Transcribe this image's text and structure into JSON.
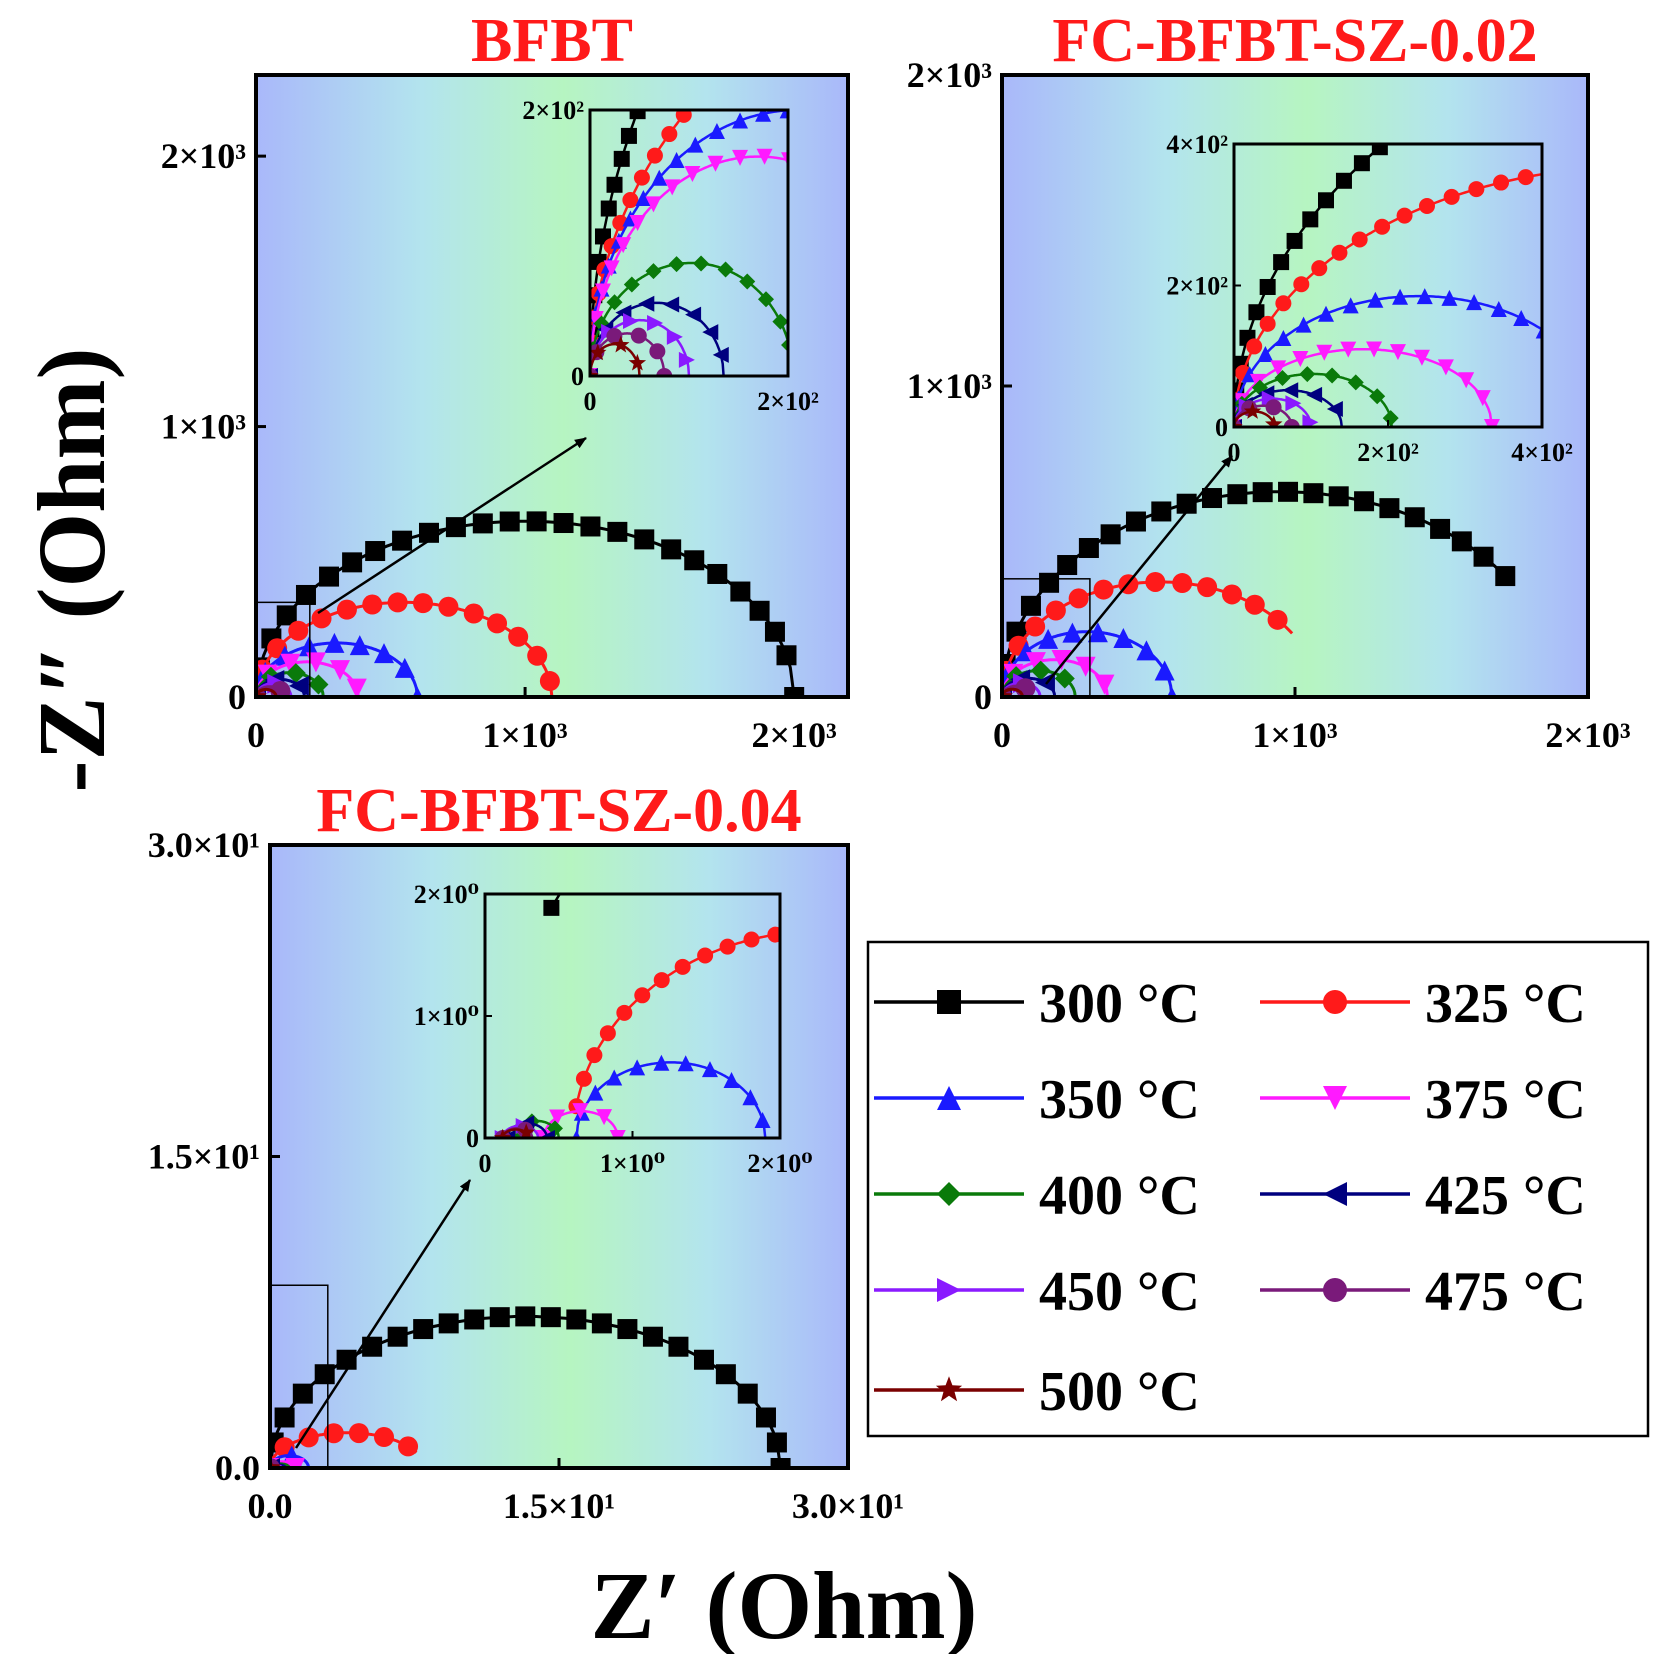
{
  "figure": {
    "x_axis_label": "Z′ (Ohm)",
    "y_axis_label": "-Z″ (Ohm)"
  },
  "legend": {
    "entries": [
      {
        "label": "300 °C",
        "color": "#000000",
        "marker": "square"
      },
      {
        "label": "325 °C",
        "color": "#ff1a1a",
        "marker": "circle"
      },
      {
        "label": "350 °C",
        "color": "#1a1aff",
        "marker": "triangle-up"
      },
      {
        "label": "375 °C",
        "color": "#ff1aff",
        "marker": "triangle-down"
      },
      {
        "label": "400 °C",
        "color": "#0a7a0a",
        "marker": "diamond"
      },
      {
        "label": "425 °C",
        "color": "#00007f",
        "marker": "triangle-left"
      },
      {
        "label": "450 °C",
        "color": "#8a1aff",
        "marker": "triangle-right"
      },
      {
        "label": "475 °C",
        "color": "#7a1a7a",
        "marker": "circle"
      },
      {
        "label": "500 °C",
        "color": "#7a0000",
        "marker": "star"
      }
    ]
  },
  "chart_data": [
    {
      "type": "scatter",
      "title": "BFBT",
      "xlim": [
        0,
        2200
      ],
      "ylim": [
        0,
        2300
      ],
      "x_ticks": [
        {
          "v": 0,
          "label": "0"
        },
        {
          "v": 1000,
          "label": "1×10³"
        },
        {
          "v": 2000,
          "label": "2×10³"
        }
      ],
      "y_ticks": [
        {
          "v": 0,
          "label": "0"
        },
        {
          "v": 1000,
          "label": "1×10³"
        },
        {
          "v": 2000,
          "label": "2×10³"
        }
      ],
      "arcs": [
        {
          "series": "300 °C",
          "x_start": 0,
          "x_end": 2000,
          "peak": 650
        },
        {
          "series": "325 °C",
          "x_start": 0,
          "x_end": 1100,
          "peak": 350
        },
        {
          "series": "350 °C",
          "x_start": 0,
          "x_end": 600,
          "peak": 200
        },
        {
          "series": "375 °C",
          "x_start": 0,
          "x_end": 380,
          "peak": 130
        },
        {
          "series": "400 °C",
          "x_start": 0,
          "x_end": 250,
          "peak": 90
        },
        {
          "series": "425 °C",
          "x_start": 0,
          "x_end": 180,
          "peak": 65
        },
        {
          "series": "450 °C",
          "x_start": 0,
          "x_end": 130,
          "peak": 50
        },
        {
          "series": "475 °C",
          "x_start": 0,
          "x_end": 100,
          "peak": 38
        },
        {
          "series": "500 °C",
          "x_start": 0,
          "x_end": 75,
          "peak": 28
        }
      ],
      "zoom_box": {
        "xlim": [
          0,
          200
        ],
        "ylim": [
          0,
          350
        ]
      },
      "inset": {
        "xlim": [
          0,
          200
        ],
        "ylim": [
          0,
          200
        ],
        "x_ticks": [
          {
            "v": 0,
            "label": "0"
          },
          {
            "v": 200,
            "label": "2×10²"
          }
        ],
        "y_ticks": [
          {
            "v": 0,
            "label": "0"
          },
          {
            "v": 200,
            "label": "2×10²"
          }
        ],
        "arcs": [
          {
            "series": "300 °C",
            "x_start": 0,
            "x_end": 2000,
            "peak": 650
          },
          {
            "series": "325 °C",
            "x_start": 0,
            "x_end": 1100,
            "peak": 350
          },
          {
            "series": "350 °C",
            "x_start": 0,
            "x_end": 420,
            "peak": 200
          },
          {
            "series": "375 °C",
            "x_start": 0,
            "x_end": 340,
            "peak": 165
          },
          {
            "series": "400 °C",
            "x_start": 0,
            "x_end": 205,
            "peak": 85
          },
          {
            "series": "425 °C",
            "x_start": 0,
            "x_end": 135,
            "peak": 55
          },
          {
            "series": "450 °C",
            "x_start": 0,
            "x_end": 100,
            "peak": 42
          },
          {
            "series": "475 °C",
            "x_start": 0,
            "x_end": 75,
            "peak": 32
          },
          {
            "series": "500 °C",
            "x_start": 0,
            "x_end": 50,
            "peak": 24
          }
        ]
      }
    },
    {
      "type": "scatter",
      "title": "FC-BFBT-SZ-0.02",
      "xlim": [
        0,
        2000
      ],
      "ylim": [
        0,
        2000
      ],
      "x_ticks": [
        {
          "v": 0,
          "label": "0"
        },
        {
          "v": 1000,
          "label": "1×10³"
        },
        {
          "v": 2000,
          "label": "2×10³"
        }
      ],
      "y_ticks": [
        {
          "v": 0,
          "label": "0"
        },
        {
          "v": 1000,
          "label": "1×10³"
        },
        {
          "v": 2000,
          "label": "2×10³"
        }
      ],
      "arcs": [
        {
          "series": "300 °C",
          "x_start": 0,
          "x_end": 1900,
          "peak": 660,
          "x_stop": 1730
        },
        {
          "series": "325 °C",
          "x_start": 0,
          "x_end": 1080,
          "peak": 370,
          "x_stop": 990
        },
        {
          "series": "350 °C",
          "x_start": 0,
          "x_end": 580,
          "peak": 210
        },
        {
          "series": "375 °C",
          "x_start": 0,
          "x_end": 360,
          "peak": 120
        },
        {
          "series": "400 °C",
          "x_start": 0,
          "x_end": 250,
          "peak": 85
        },
        {
          "series": "425 °C",
          "x_start": 0,
          "x_end": 180,
          "peak": 60
        },
        {
          "series": "450 °C",
          "x_start": 0,
          "x_end": 130,
          "peak": 45
        },
        {
          "series": "475 °C",
          "x_start": 0,
          "x_end": 100,
          "peak": 35
        },
        {
          "series": "500 °C",
          "x_start": 0,
          "x_end": 70,
          "peak": 25
        }
      ],
      "zoom_box": {
        "xlim": [
          0,
          300
        ],
        "ylim": [
          0,
          380
        ]
      },
      "inset": {
        "xlim": [
          0,
          400
        ],
        "ylim": [
          0,
          400
        ],
        "x_ticks": [
          {
            "v": 0,
            "label": "0"
          },
          {
            "v": 200,
            "label": "2×10²"
          },
          {
            "v": 400,
            "label": "4×10²"
          }
        ],
        "y_ticks": [
          {
            "v": 0,
            "label": "0"
          },
          {
            "v": 200,
            "label": "2×10²"
          },
          {
            "v": 400,
            "label": "4×10²"
          }
        ],
        "arcs": [
          {
            "series": "300 °C",
            "x_start": 0,
            "x_end": 1900,
            "peak": 660
          },
          {
            "series": "325 °C",
            "x_start": 0,
            "x_end": 1080,
            "peak": 370
          },
          {
            "series": "350 °C",
            "x_start": 0,
            "x_end": 480,
            "peak": 185
          },
          {
            "series": "375 °C",
            "x_start": 0,
            "x_end": 335,
            "peak": 110
          },
          {
            "series": "400 °C",
            "x_start": 0,
            "x_end": 205,
            "peak": 75
          },
          {
            "series": "425 °C",
            "x_start": 0,
            "x_end": 140,
            "peak": 52
          },
          {
            "series": "450 °C",
            "x_start": 0,
            "x_end": 100,
            "peak": 40
          },
          {
            "series": "475 °C",
            "x_start": 0,
            "x_end": 75,
            "peak": 30
          },
          {
            "series": "500 °C",
            "x_start": 0,
            "x_end": 52,
            "peak": 22
          }
        ]
      }
    },
    {
      "type": "scatter",
      "title": "FC-BFBT-SZ-0.04",
      "xlim": [
        0,
        30
      ],
      "ylim": [
        0,
        30
      ],
      "x_ticks": [
        {
          "v": 0,
          "label": "0.0"
        },
        {
          "v": 15,
          "label": "1.5×10¹"
        },
        {
          "v": 30,
          "label": "3.0×10¹"
        }
      ],
      "y_ticks": [
        {
          "v": 0,
          "label": "0.0"
        },
        {
          "v": 15,
          "label": "1.5×10¹"
        },
        {
          "v": 30,
          "label": "3.0×10¹"
        }
      ],
      "arcs": [
        {
          "series": "300 °C",
          "x_start": 0,
          "x_end": 26.5,
          "peak": 7.3
        },
        {
          "series": "325 °C",
          "x_start": 0,
          "x_end": 8.0,
          "peak": 1.7,
          "x_stop": 7.6
        },
        {
          "series": "350 °C",
          "x_start": 0,
          "x_end": 2.0,
          "peak": 0.6
        },
        {
          "series": "375 °C",
          "x_start": 0,
          "x_end": 1.3,
          "peak": 0.3
        },
        {
          "series": "400 °C",
          "x_start": 0,
          "x_end": 1.0,
          "peak": 0.2
        },
        {
          "series": "425 °C",
          "x_start": 0,
          "x_end": 0.8,
          "peak": 0.15
        },
        {
          "series": "450 °C",
          "x_start": 0,
          "x_end": 0.6,
          "peak": 0.12
        },
        {
          "series": "475 °C",
          "x_start": 0,
          "x_end": 0.45,
          "peak": 0.1
        },
        {
          "series": "500 °C",
          "x_start": 0,
          "x_end": 0.35,
          "peak": 0.08
        }
      ],
      "zoom_box": {
        "xlim": [
          0,
          3
        ],
        "ylim": [
          0,
          8.8
        ]
      },
      "inset": {
        "xlim": [
          0,
          2
        ],
        "ylim": [
          0,
          2
        ],
        "x_ticks": [
          {
            "v": 0,
            "label": "0"
          },
          {
            "v": 1,
            "label": "1×10⁰"
          },
          {
            "v": 2,
            "label": "2×10⁰"
          }
        ],
        "y_ticks": [
          {
            "v": 0,
            "label": "0"
          },
          {
            "v": 1,
            "label": "1×10⁰"
          },
          {
            "v": 2,
            "label": "2×10⁰"
          }
        ],
        "arcs": [
          {
            "series": "300 °C",
            "x_start": 0,
            "x_end": 26.5,
            "peak": 7.3,
            "x_from": 0.45
          },
          {
            "series": "325 °C",
            "x_start": 0.6,
            "x_end": 4.0,
            "peak": 1.7,
            "x_from": 0.62
          },
          {
            "series": "350 °C",
            "x_start": 0.62,
            "x_end": 1.9,
            "peak": 0.62,
            "x_from": 0.62
          },
          {
            "series": "375 °C",
            "x_start": 0.4,
            "x_end": 0.9,
            "peak": 0.22
          },
          {
            "series": "400 °C",
            "x_start": 0.2,
            "x_end": 0.5,
            "peak": 0.14
          },
          {
            "series": "425 °C",
            "x_start": 0.15,
            "x_end": 0.42,
            "peak": 0.12
          },
          {
            "series": "450 °C",
            "x_start": 0.12,
            "x_end": 0.36,
            "peak": 0.1
          },
          {
            "series": "475 °C",
            "x_start": 0.12,
            "x_end": 0.32,
            "peak": 0.08
          },
          {
            "series": "500 °C",
            "x_start": 0.12,
            "x_end": 0.3,
            "peak": 0.07
          }
        ]
      }
    }
  ]
}
